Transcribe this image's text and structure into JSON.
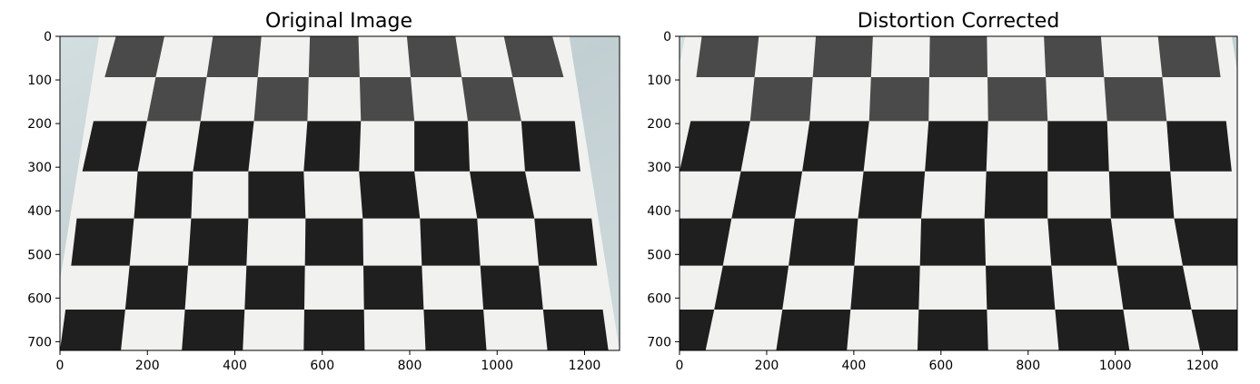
{
  "panels": [
    {
      "title": "Original Image",
      "x_ticks": [
        "0",
        "200",
        "400",
        "600",
        "800",
        "1000",
        "1200"
      ],
      "y_ticks": [
        "0",
        "100",
        "200",
        "300",
        "400",
        "500",
        "600",
        "700"
      ],
      "image": {
        "width": 1280,
        "height": 720,
        "content": "checkerboard calibration pattern (distorted)"
      }
    },
    {
      "title": "Distortion Corrected",
      "x_ticks": [
        "0",
        "200",
        "400",
        "600",
        "800",
        "1000",
        "1200"
      ],
      "y_ticks": [
        "0",
        "100",
        "200",
        "300",
        "400",
        "500",
        "600",
        "700"
      ],
      "image": {
        "width": 1280,
        "height": 720,
        "content": "checkerboard calibration pattern (undistorted)"
      }
    }
  ],
  "colors": {
    "background_wall": "#c9d6d8",
    "paper": "#f1f1f0",
    "dark_square": "#1f1f1f",
    "axis": "#000000"
  }
}
